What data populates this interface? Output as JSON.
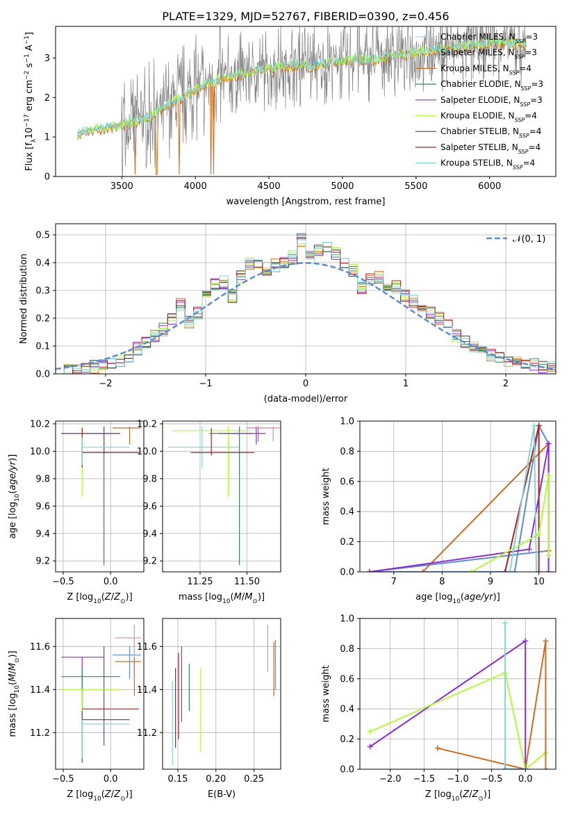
{
  "figure_title": "PLATE=1329, MJD=52767, FIBERID=0390, z=0.456",
  "legend": {
    "entries": [
      {
        "label": "Chabrier MILES, N",
        "sub": "SSP",
        "suffix": "=3",
        "color": "#add8e6"
      },
      {
        "label": "Salpeter MILES, N",
        "sub": "SSP",
        "suffix": "=3",
        "color": "#f0e68c"
      },
      {
        "label": "Kroupa MILES, N",
        "sub": "SSP",
        "suffix": "=4",
        "color": "#d2691e"
      },
      {
        "label": "Chabrier ELODIE, N",
        "sub": "SSP",
        "suffix": "=3",
        "color": "#2e8b57"
      },
      {
        "label": "Salpeter ELODIE, N",
        "sub": "SSP",
        "suffix": "=3",
        "color": "#8a2be2"
      },
      {
        "label": "Kroupa ELODIE, N",
        "sub": "SSP",
        "suffix": "=4",
        "color": "#adff2f"
      },
      {
        "label": "Chabrier STELIB, N",
        "sub": "SSP",
        "suffix": "=4",
        "color": "#444444"
      },
      {
        "label": "Salpeter STELIB, N",
        "sub": "SSP",
        "suffix": "=4",
        "color": "#b22222"
      },
      {
        "label": "Kroupa STELIB, N",
        "sub": "SSP",
        "suffix": "=4",
        "color": "#7fd6dc"
      }
    ],
    "normal_label": "𝒩(0, 1)",
    "normal_color": "#5b8bd8"
  },
  "chart_data": [
    {
      "id": "spectrum",
      "type": "line",
      "xlabel": "wavelength [Angstrom, rest frame]",
      "ylabel": "Flux [f",
      "ylabel_sub": "λ",
      "ylabel_rest": "10",
      "ylabel_exp": "−17",
      "ylabel_units": " erg cm",
      "xlim": [
        3050,
        6450
      ],
      "ylim": [
        0,
        3.8
      ],
      "xticks": [
        3500,
        4000,
        4500,
        5000,
        5500,
        6000
      ],
      "yticks": [
        0,
        1,
        2,
        3
      ],
      "data_color": "#808080",
      "data_range": [
        3200,
        6250
      ],
      "model_color": "#7fd6dc",
      "model_points": [
        [
          3200,
          1.1
        ],
        [
          3300,
          1.2
        ],
        [
          3400,
          1.25
        ],
        [
          3500,
          1.3
        ],
        [
          3600,
          1.4
        ],
        [
          3700,
          1.55
        ],
        [
          3800,
          1.8
        ],
        [
          3900,
          2.0
        ],
        [
          4000,
          2.2
        ],
        [
          4100,
          2.4
        ],
        [
          4200,
          2.5
        ],
        [
          4300,
          2.6
        ],
        [
          4400,
          2.7
        ],
        [
          4500,
          2.75
        ],
        [
          4600,
          2.8
        ],
        [
          4700,
          2.85
        ],
        [
          4800,
          2.8
        ],
        [
          4900,
          2.9
        ],
        [
          5000,
          2.95
        ],
        [
          5100,
          3.0
        ],
        [
          5200,
          2.95
        ],
        [
          5300,
          3.05
        ],
        [
          5400,
          3.1
        ],
        [
          5500,
          3.15
        ],
        [
          5600,
          3.2
        ],
        [
          5700,
          3.25
        ],
        [
          5800,
          3.3
        ],
        [
          5900,
          3.35
        ],
        [
          6000,
          3.4
        ],
        [
          6100,
          3.4
        ],
        [
          6200,
          3.35
        ],
        [
          6250,
          3.3
        ]
      ]
    },
    {
      "id": "residuals",
      "type": "line",
      "xlabel": "(data-model)/error",
      "ylabel": "Normed distribution",
      "xlim": [
        -2.5,
        2.5
      ],
      "ylim": [
        0,
        0.54
      ],
      "xticks": [
        -2,
        -1,
        0,
        1,
        2
      ],
      "yticks": [
        0,
        0.1,
        0.2,
        0.3,
        0.4,
        0.5
      ],
      "hist": [
        0.01,
        0.01,
        0.015,
        0.02,
        0.025,
        0.03,
        0.04,
        0.05,
        0.065,
        0.09,
        0.11,
        0.14,
        0.16,
        0.2,
        0.25,
        0.19,
        0.22,
        0.3,
        0.32,
        0.33,
        0.28,
        0.35,
        0.4,
        0.39,
        0.38,
        0.39,
        0.4,
        0.42,
        0.48,
        0.42,
        0.44,
        0.45,
        0.43,
        0.4,
        0.37,
        0.31,
        0.34,
        0.35,
        0.3,
        0.31,
        0.28,
        0.26,
        0.24,
        0.22,
        0.2,
        0.18,
        0.14,
        0.12,
        0.1,
        0.085,
        0.07,
        0.06,
        0.05,
        0.045,
        0.04,
        0.03,
        0.025,
        0.02
      ]
    },
    {
      "id": "age_vs_Z",
      "type": "scatter",
      "xlabel": "Z [log",
      "ylabel": "age  [log",
      "xlim": [
        -0.58,
        0.35
      ],
      "ylim": [
        9.12,
        10.22
      ],
      "xticks": [
        -0.5,
        0.0
      ],
      "yticks": [
        9.2,
        9.4,
        9.6,
        9.8,
        10.0,
        10.2
      ],
      "bars": [
        {
          "x": -0.3,
          "y": 10.13,
          "x0": -0.52,
          "x1": 0.05,
          "y0": 9.88,
          "y1": 10.18,
          "color": "#7fd6dc"
        },
        {
          "x": 0.2,
          "y": 10.17,
          "x0": 0.02,
          "x1": 0.32,
          "y0": 10.05,
          "y1": 10.18,
          "color": "#d2691e"
        },
        {
          "x": -0.3,
          "y": 10.13,
          "x0": -0.52,
          "x1": 0.05,
          "y0": 9.67,
          "y1": 10.18,
          "color": "#adff2f"
        },
        {
          "x": -0.07,
          "y": 10.13,
          "x0": -0.52,
          "x1": 0.1,
          "y0": 9.17,
          "y1": 10.18,
          "color": "#2e8b57"
        },
        {
          "x": -0.07,
          "y": 10.13,
          "x0": -0.52,
          "x1": 0.1,
          "y0": 9.98,
          "y1": 10.18,
          "color": "#8a2be2"
        },
        {
          "x": -0.3,
          "y": 9.99,
          "x0": -0.3,
          "x1": 0.3,
          "y0": 9.88,
          "y1": 10.17,
          "color": "#b22222"
        },
        {
          "x": -0.3,
          "y": 10.03,
          "x0": -0.3,
          "x1": 0.2,
          "y0": 9.9,
          "y1": 10.1,
          "color": "#7fd6dc"
        }
      ]
    },
    {
      "id": "age_vs_mass",
      "type": "scatter",
      "xlabel": "mass [log",
      "xlim": [
        11.05,
        11.68
      ],
      "ylim": [
        9.12,
        10.22
      ],
      "xticks": [
        11.25,
        11.5
      ],
      "yticks": [
        9.2,
        9.4,
        9.6,
        9.8,
        10.0,
        10.2
      ],
      "bars": [
        {
          "x": 11.26,
          "y": 10.03,
          "x0": 11.08,
          "x1": 11.46,
          "y0": 9.88,
          "y1": 10.18,
          "color": "#7fd6dc"
        },
        {
          "x": 11.56,
          "y": 10.17,
          "x0": 11.5,
          "x1": 11.63,
          "y0": 10.07,
          "y1": 10.18,
          "color": "#d2691e"
        },
        {
          "x": 11.4,
          "y": 10.15,
          "x0": 11.1,
          "x1": 11.52,
          "y0": 9.67,
          "y1": 10.18,
          "color": "#adff2f"
        },
        {
          "x": 11.46,
          "y": 10.13,
          "x0": 11.3,
          "x1": 11.53,
          "y0": 9.17,
          "y1": 10.18,
          "color": "#2e8b57"
        },
        {
          "x": 11.55,
          "y": 10.13,
          "x0": 11.35,
          "x1": 11.6,
          "y0": 10.05,
          "y1": 10.18,
          "color": "#8a2be2"
        },
        {
          "x": 11.31,
          "y": 9.99,
          "x0": 11.2,
          "x1": 11.54,
          "y0": 9.97,
          "y1": 10.17,
          "color": "#b22222"
        },
        {
          "x": 11.64,
          "y": 10.17,
          "x0": 11.5,
          "x1": 11.68,
          "y0": 10.07,
          "y1": 10.18,
          "color": "#e88aa8"
        }
      ]
    },
    {
      "id": "weight_vs_age",
      "type": "line",
      "xlabel": "age  [log",
      "ylabel": "mass weight",
      "xlim": [
        6.3,
        10.35
      ],
      "ylim": [
        0,
        1.0
      ],
      "xticks": [
        7,
        8,
        9,
        10
      ],
      "yticks": [
        0.0,
        0.2,
        0.4,
        0.6,
        0.8,
        1.0
      ],
      "series": [
        {
          "color": "#5b8bd8",
          "points": [
            [
              6.5,
              0.0
            ],
            [
              10.2,
              0.14
            ],
            [
              10.2,
              0.85
            ],
            [
              10.0,
              0.97
            ],
            [
              9.5,
              0.0
            ],
            [
              6.5,
              0.0
            ]
          ]
        },
        {
          "color": "#d2691e",
          "points": [
            [
              7.6,
              0.0
            ],
            [
              10.2,
              0.85
            ],
            [
              10.2,
              0.14
            ]
          ]
        },
        {
          "color": "#8a2be2",
          "points": [
            [
              6.5,
              0.0
            ],
            [
              9.8,
              0.15
            ],
            [
              10.2,
              0.85
            ],
            [
              10.2,
              0.0
            ]
          ]
        },
        {
          "color": "#b22222",
          "points": [
            [
              9.3,
              0.0
            ],
            [
              10.0,
              0.97
            ],
            [
              10.0,
              0.0
            ]
          ]
        },
        {
          "color": "#adff2f",
          "points": [
            [
              8.6,
              0.0
            ],
            [
              10.0,
              0.25
            ],
            [
              10.2,
              0.64
            ],
            [
              10.2,
              0.11
            ]
          ]
        },
        {
          "color": "#7fd6dc",
          "points": [
            [
              9.4,
              0.0
            ],
            [
              9.9,
              0.97
            ],
            [
              9.95,
              0.0
            ]
          ]
        }
      ]
    },
    {
      "id": "mass_vs_Z",
      "type": "scatter",
      "xlabel": "Z [log",
      "ylabel": "mass [log",
      "xlim": [
        -0.58,
        0.35
      ],
      "ylim": [
        11.03,
        11.73
      ],
      "xticks": [
        -0.5,
        0.0
      ],
      "yticks": [
        11.2,
        11.4,
        11.6
      ],
      "bars": [
        {
          "x": 0.2,
          "y": 11.56,
          "x0": 0.02,
          "x1": 0.32,
          "y0": 11.45,
          "y1": 11.6,
          "color": "#5b8bd8"
        },
        {
          "x": 0.25,
          "y": 11.64,
          "x0": 0.05,
          "x1": 0.32,
          "y0": 11.48,
          "y1": 11.7,
          "color": "#e88aa8"
        },
        {
          "x": -0.3,
          "y": 11.55,
          "x0": -0.52,
          "x1": -0.07,
          "y0": 11.3,
          "y1": 11.55,
          "color": "#8a2be2"
        },
        {
          "x": -0.07,
          "y": 11.55,
          "x0": -0.07,
          "x1": -0.07,
          "y0": 11.14,
          "y1": 11.6,
          "color": "#8a2be2"
        },
        {
          "x": -0.3,
          "y": 11.46,
          "x0": -0.52,
          "x1": 0.1,
          "y0": 11.22,
          "y1": 11.5,
          "color": "#2e8b57"
        },
        {
          "x": -0.3,
          "y": 11.4,
          "x0": -0.52,
          "x1": 0.1,
          "y0": 11.12,
          "y1": 11.4,
          "color": "#adff2f"
        },
        {
          "x": -0.07,
          "y": 11.31,
          "x0": -0.3,
          "x1": 0.3,
          "y0": 11.31,
          "y1": 11.31,
          "color": "#b22222"
        },
        {
          "x": -0.3,
          "y": 11.26,
          "x0": -0.3,
          "x1": 0.2,
          "y0": 11.06,
          "y1": 11.3,
          "color": "#444444"
        },
        {
          "x": -0.3,
          "y": 11.24,
          "x0": -0.3,
          "x1": 0.2,
          "y0": 11.08,
          "y1": 11.26,
          "color": "#7fd6dc"
        },
        {
          "x": 0.25,
          "y": 11.53,
          "x0": 0.05,
          "x1": 0.32,
          "y0": 11.37,
          "y1": 11.55,
          "color": "#d2691e"
        }
      ]
    },
    {
      "id": "mass_vs_ebv",
      "type": "scatter",
      "xlabel": "E(B-V)",
      "xlim": [
        0.13,
        0.285
      ],
      "ylim": [
        11.03,
        11.73
      ],
      "xticks": [
        0.15,
        0.2,
        0.25
      ],
      "yticks": [
        11.2,
        11.4,
        11.6
      ],
      "bars": [
        {
          "x": 0.143,
          "y": 11.3,
          "x0": 0.143,
          "x1": 0.143,
          "y0": 11.05,
          "y1": 11.44,
          "color": "#7fd6dc"
        },
        {
          "x": 0.147,
          "y": 11.3,
          "x0": 0.147,
          "x1": 0.147,
          "y0": 11.13,
          "y1": 11.5,
          "color": "#444444"
        },
        {
          "x": 0.151,
          "y": 11.4,
          "x0": 0.151,
          "x1": 0.151,
          "y0": 11.17,
          "y1": 11.57,
          "color": "#b22222"
        },
        {
          "x": 0.155,
          "y": 11.45,
          "x0": 0.155,
          "x1": 0.155,
          "y0": 11.25,
          "y1": 11.6,
          "color": "#8a2be2"
        },
        {
          "x": 0.165,
          "y": 11.4,
          "x0": 0.165,
          "x1": 0.165,
          "y0": 11.3,
          "y1": 11.52,
          "color": "#2e8b57"
        },
        {
          "x": 0.18,
          "y": 11.35,
          "x0": 0.18,
          "x1": 0.18,
          "y0": 11.11,
          "y1": 11.5,
          "color": "#adff2f"
        },
        {
          "x": 0.268,
          "y": 11.6,
          "x0": 0.268,
          "x1": 0.268,
          "y0": 11.48,
          "y1": 11.7,
          "color": "#e88aa8"
        },
        {
          "x": 0.276,
          "y": 11.5,
          "x0": 0.276,
          "x1": 0.276,
          "y0": 11.37,
          "y1": 11.62,
          "color": "#d2691e"
        },
        {
          "x": 0.278,
          "y": 11.55,
          "x0": 0.278,
          "x1": 0.278,
          "y0": 11.4,
          "y1": 11.63,
          "color": "#5b8bd8"
        }
      ]
    },
    {
      "id": "weight_vs_Z",
      "type": "line",
      "xlabel": "Z [log",
      "ylabel": "mass weight",
      "xlim": [
        -2.45,
        0.45
      ],
      "ylim": [
        0,
        1.0
      ],
      "xticks": [
        -2.0,
        -1.5,
        -1.0,
        -0.5,
        0.0
      ],
      "yticks": [
        0.0,
        0.2,
        0.4,
        0.6,
        0.8,
        1.0
      ],
      "series": [
        {
          "color": "#8a2be2",
          "points": [
            [
              -2.3,
              0.15
            ],
            [
              0.0,
              0.85
            ],
            [
              0.0,
              0.0
            ]
          ]
        },
        {
          "color": "#adff2f",
          "points": [
            [
              -2.3,
              0.25
            ],
            [
              -0.3,
              0.64
            ],
            [
              0.0,
              0.0
            ],
            [
              0.3,
              0.11
            ]
          ]
        },
        {
          "color": "#d2691e",
          "points": [
            [
              -1.3,
              0.14
            ],
            [
              0.0,
              0.0
            ],
            [
              0.3,
              0.85
            ],
            [
              0.3,
              0.0
            ]
          ]
        },
        {
          "color": "#7fd6dc",
          "points": [
            [
              -0.3,
              0.97
            ],
            [
              -0.3,
              0.0
            ]
          ]
        },
        {
          "color": "#5b8bd8",
          "points": [
            [
              -0.3,
              0.0
            ],
            [
              0.0,
              0.0
            ]
          ]
        }
      ]
    }
  ]
}
